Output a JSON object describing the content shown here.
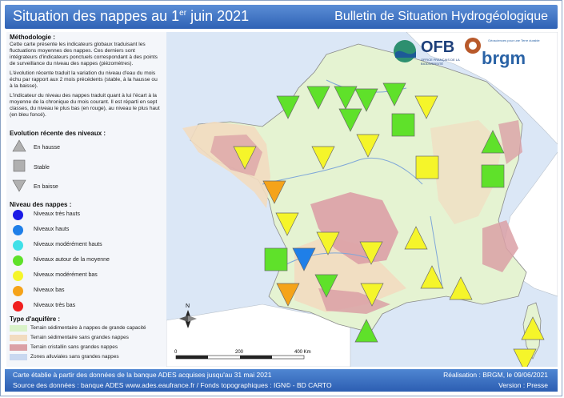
{
  "header": {
    "title_main": "Situation des nappes au 1",
    "title_sup": "er",
    "title_end": " juin 2021",
    "subtitle": "Bulletin de Situation Hydrogéologique"
  },
  "methodology": {
    "heading": "Méthodologie :",
    "p1": "Cette carte présente les indicateurs globaux traduisant les fluctuations moyennes des nappes. Ces derniers sont intégrateurs d'indicateurs ponctuels correspondant à des points de surveillance du niveau des nappes (piézomètres).",
    "p2": "L'évolution récente traduit la variation du niveau d'eau du mois échu par rapport aux 2 mois précédents (stable, à la hausse ou à la baisse).",
    "p3": "L'indicateur du niveau des nappes traduit quant à lui l'écart à la moyenne de la chronique du mois courant. Il est réparti en sept classes, du niveau le plus bas (en rouge), au niveau le plus haut (en bleu foncé)."
  },
  "evolution": {
    "heading": "Evolution récente des niveaux :",
    "items": [
      "En hausse",
      "Stable",
      "En baisse"
    ]
  },
  "levels": {
    "heading": "Niveau des nappes :",
    "items": [
      {
        "label": "Niveaux très hauts",
        "color": "#1a1ae6"
      },
      {
        "label": "Niveaux hauts",
        "color": "#1f7fe8"
      },
      {
        "label": "Niveaux modérément hauts",
        "color": "#3fe0e8"
      },
      {
        "label": "Niveaux autour de la moyenne",
        "color": "#5fe12a"
      },
      {
        "label": "Niveaux modérément bas",
        "color": "#f5f52a"
      },
      {
        "label": "Niveaux bas",
        "color": "#f5a31a"
      },
      {
        "label": "Niveaux très bas",
        "color": "#f02020"
      }
    ]
  },
  "aquifer": {
    "heading": "Type d'aquifère :",
    "items": [
      {
        "label": "Terrain sédimentaire à nappes de grande capacité",
        "color": "#d9f2c9"
      },
      {
        "label": "Terrain sédimentaire sans grandes nappes",
        "color": "#f2dcc0"
      },
      {
        "label": "Terrain cristallin sans grandes nappes",
        "color": "#dba0a6"
      },
      {
        "label": "Zones alluviales sans grandes nappes",
        "color": "#c9d8f0"
      }
    ]
  },
  "scale": {
    "labels": [
      "0",
      "200",
      "400 Km"
    ]
  },
  "north": "N",
  "logos": {
    "ofb": "OFB",
    "ofb_sub": "OFFICE FRANÇAIS DE LA BIODIVERSITÉ",
    "brgm": "brgm",
    "brgm_sub": "Géosciences pour une Terre durable"
  },
  "footer": {
    "line1_left": "Carte établie à partir des données de la banque ADES acquises jusqu'au 31 mai 2021",
    "line2_left": "Source des données : banque ADES www.ades.eaufrance.fr / Fonds topographiques : IGN© - BD CARTO",
    "line1_right": "Réalisation : BRGM, le 09/06/2021",
    "line2_right": "Version : Presse"
  },
  "markers": [
    {
      "shape": "down",
      "color": "#5fe12a"
    },
    {
      "shape": "down",
      "color": "#5fe12a"
    },
    {
      "shape": "down",
      "color": "#5fe12a"
    },
    {
      "shape": "down",
      "color": "#5fe12a"
    },
    {
      "shape": "down",
      "color": "#f5f52a"
    },
    {
      "shape": "up",
      "color": "#5fe12a"
    },
    {
      "shape": "down",
      "color": "#5fe12a"
    },
    {
      "shape": "down",
      "color": "#5fe12a"
    },
    {
      "shape": "square",
      "color": "#5fe12a"
    },
    {
      "shape": "down",
      "color": "#f5f52a"
    },
    {
      "shape": "down",
      "color": "#f5f52a"
    },
    {
      "shape": "down",
      "color": "#f5f52a"
    },
    {
      "shape": "square",
      "color": "#f5f52a"
    },
    {
      "shape": "square",
      "color": "#5fe12a"
    },
    {
      "shape": "down",
      "color": "#f5a31a"
    },
    {
      "shape": "down",
      "color": "#f5f52a"
    },
    {
      "shape": "up",
      "color": "#f5f52a"
    },
    {
      "shape": "down",
      "color": "#f5f52a"
    },
    {
      "shape": "down",
      "color": "#f5f52a"
    },
    {
      "shape": "up",
      "color": "#f5f52a"
    },
    {
      "shape": "square",
      "color": "#5fe12a"
    },
    {
      "shape": "down",
      "color": "#1f7fe8"
    },
    {
      "shape": "down",
      "color": "#5fe12a"
    },
    {
      "shape": "down",
      "color": "#f5a31a"
    },
    {
      "shape": "down",
      "color": "#f5f52a"
    },
    {
      "shape": "up",
      "color": "#f5f52a"
    },
    {
      "shape": "up",
      "color": "#5fe12a"
    },
    {
      "shape": "down",
      "color": "#f5f52a"
    },
    {
      "shape": "up",
      "color": "#f5f52a"
    }
  ]
}
